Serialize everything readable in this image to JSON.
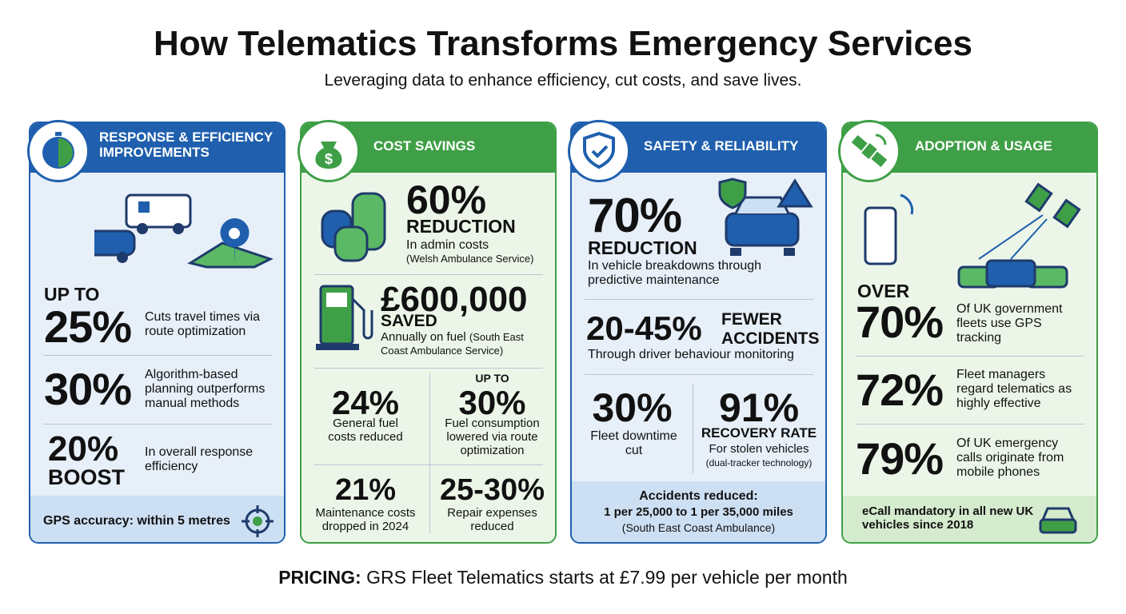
{
  "header": {
    "title": "How Telematics Transforms Emergency Services",
    "subtitle": "Leveraging data to enhance efficiency, cut costs, and save lives."
  },
  "panels": [
    {
      "title": "RESPONSE & EFFICIENCY IMPROVEMENTS",
      "stats": [
        {
          "prefix": "UP TO",
          "value": "25%",
          "text": "Cuts travel times via route optimization"
        },
        {
          "value": "30%",
          "text": "Algorithm-based planning outperforms manual methods"
        },
        {
          "value": "20%",
          "suffix": "BOOST",
          "text": "In overall response efficiency"
        }
      ],
      "footer": "GPS accuracy: within 5 metres"
    },
    {
      "title": "COST SAVINGS",
      "stats": [
        {
          "value": "60%",
          "suffix": "REDUCTION",
          "text": "In admin costs",
          "note": "(Welsh Ambulance Service)"
        },
        {
          "value": "£600,000",
          "suffix": "SAVED",
          "text": "Annually on fuel",
          "note": "(South East Coast Ambulance Service)"
        },
        {
          "value": "24%",
          "text": "General fuel costs reduced"
        },
        {
          "prefix": "UP TO",
          "value": "30%",
          "text": "Fuel consumption lowered via route optimization"
        },
        {
          "value": "21%",
          "text": "Maintenance costs dropped in 2024"
        },
        {
          "value": "25-30%",
          "text": "Repair expenses reduced"
        }
      ]
    },
    {
      "title": "SAFETY & RELIABILITY",
      "stats": [
        {
          "value": "70%",
          "suffix": "REDUCTION",
          "text": "In vehicle breakdowns through predictive maintenance"
        },
        {
          "value": "20-45%",
          "suffix": "FEWER ACCIDENTS",
          "text": "Through driver behaviour monitoring"
        },
        {
          "value": "30%",
          "text": "Fleet downtime cut"
        },
        {
          "value": "91%",
          "suffix": "RECOVERY RATE",
          "text": "For stolen vehicles",
          "note": "(dual-tracker technology)"
        }
      ],
      "footer": {
        "title": "Accidents reduced:",
        "text": "1 per 25,000 to 1 per 35,000 miles",
        "note": "(South East Coast Ambulance)"
      }
    },
    {
      "title": "ADOPTION & USAGE",
      "stats": [
        {
          "prefix": "OVER",
          "value": "70%",
          "text": "Of UK government fleets use GPS tracking"
        },
        {
          "value": "72%",
          "text": "Fleet managers regard telematics as highly effective"
        },
        {
          "value": "79%",
          "text": "Of UK emergency calls originate from mobile phones"
        }
      ],
      "footer": "eCall mandatory in all new UK vehicles since 2018"
    }
  ],
  "pricing": {
    "label": "PRICING:",
    "text": "GRS Fleet Telematics starts at £7.99 per vehicle per month"
  }
}
